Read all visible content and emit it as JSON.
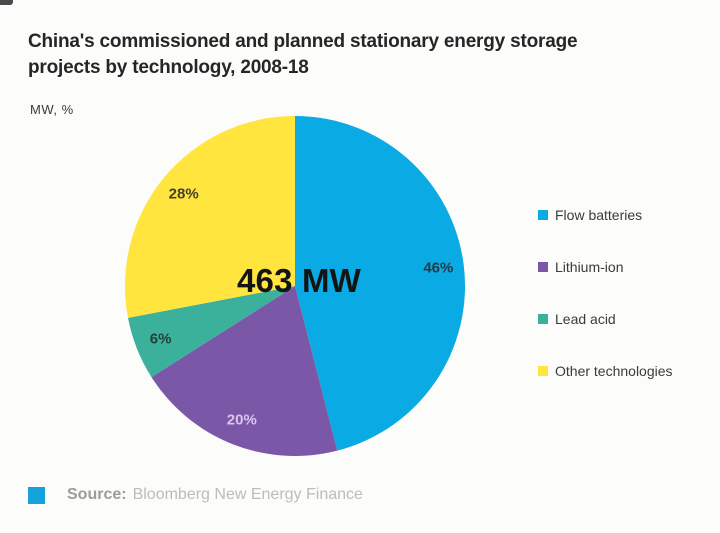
{
  "chart_data": {
    "type": "pie",
    "title": "China's commissioned and planned stationary energy storage projects by technology, 2008-18",
    "title_lines": [
      "China's commissioned and planned stationary energy storage",
      "projects by technology, 2008-18"
    ],
    "units_label": "MW, %",
    "center_label": "463 MW",
    "total_mw": 463,
    "direction": "clockwise",
    "start_angle_deg": 0,
    "legend_position": "right",
    "slices": [
      {
        "label": "Flow batteries",
        "value_pct": 46,
        "pct_label": "46%",
        "color": "#0AAAE4",
        "pct_label_color": "#2B3845"
      },
      {
        "label": "Lithium-ion",
        "value_pct": 20,
        "pct_label": "20%",
        "color": "#7B57A7",
        "pct_label_color": "#D9C6EE"
      },
      {
        "label": "Lead acid",
        "value_pct": 6,
        "pct_label": "6%",
        "color": "#3BB19B",
        "pct_label_color": "#243F38"
      },
      {
        "label": "Other technologies",
        "value_pct": 28,
        "pct_label": "28%",
        "color": "#FFE53E",
        "pct_label_color": "#414130"
      }
    ],
    "legend_order": [
      "Flow batteries",
      "Lithium-ion",
      "Lead acid",
      "Other technologies"
    ]
  },
  "source": {
    "label": "Source:",
    "text": "Bloomberg New Energy Finance",
    "marker_color": "#13A2DB"
  }
}
